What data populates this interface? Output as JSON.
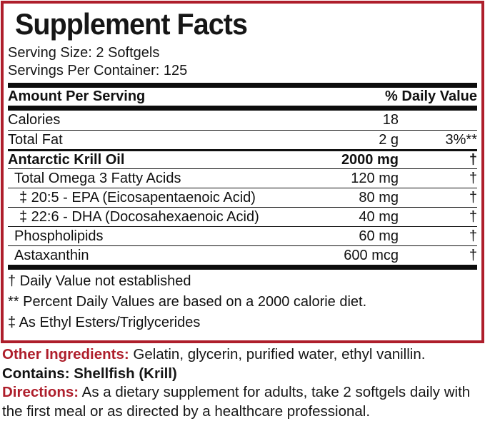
{
  "colors": {
    "accent_red": "#AE1E2B",
    "ink": "#111111"
  },
  "title": "Supplement Facts",
  "serving": {
    "size": "Serving Size: 2 Softgels",
    "per_container": "Servings Per Container: 125"
  },
  "table": {
    "amount_header": "Amount Per Serving",
    "dv_header": "% Daily Value",
    "rows": [
      {
        "name": "Calories",
        "amount": "18",
        "dv": "",
        "level": 0,
        "bold": false
      },
      {
        "name": "Total Fat",
        "amount": "2 g",
        "dv": "3%**",
        "level": 0,
        "bold": false
      },
      {
        "name": "Antarctic Krill Oil",
        "amount": "2000 mg",
        "dv": "†",
        "level": 0,
        "bold": true
      },
      {
        "name": "Total Omega 3 Fatty Acids",
        "amount": "120 mg",
        "dv": "†",
        "level": 1,
        "bold": false
      },
      {
        "name": "‡ 20:5 - EPA (Eicosapentaenoic Acid)",
        "amount": "80 mg",
        "dv": "†",
        "level": 2,
        "bold": false
      },
      {
        "name": "‡ 22:6 - DHA (Docosahexaenoic Acid)",
        "amount": "40 mg",
        "dv": "†",
        "level": 2,
        "bold": false
      },
      {
        "name": "Phospholipids",
        "amount": "60 mg",
        "dv": "†",
        "level": 1,
        "bold": false
      },
      {
        "name": "Astaxanthin",
        "amount": "600 mcg",
        "dv": "†",
        "level": 1,
        "bold": false
      }
    ],
    "footnotes": [
      "† Daily Value not established",
      "** Percent Daily Values are based on a 2000 calorie diet.",
      "‡ As Ethyl Esters/Triglycerides"
    ]
  },
  "bottom_lines": [
    {
      "label": "Other Ingredients:",
      "label_color": "red",
      "text": " Gelatin, glycerin, purified water, ethyl vanillin.",
      "text_bold": false
    },
    {
      "label": "Contains:",
      "label_color": "black",
      "text": " Shellfish (Krill)",
      "text_bold": true
    },
    {
      "label": "Directions:",
      "label_color": "red",
      "text": " As a dietary supplement for adults, take 2 softgels daily with the first meal or as directed by a healthcare professional.",
      "text_bold": false
    }
  ]
}
